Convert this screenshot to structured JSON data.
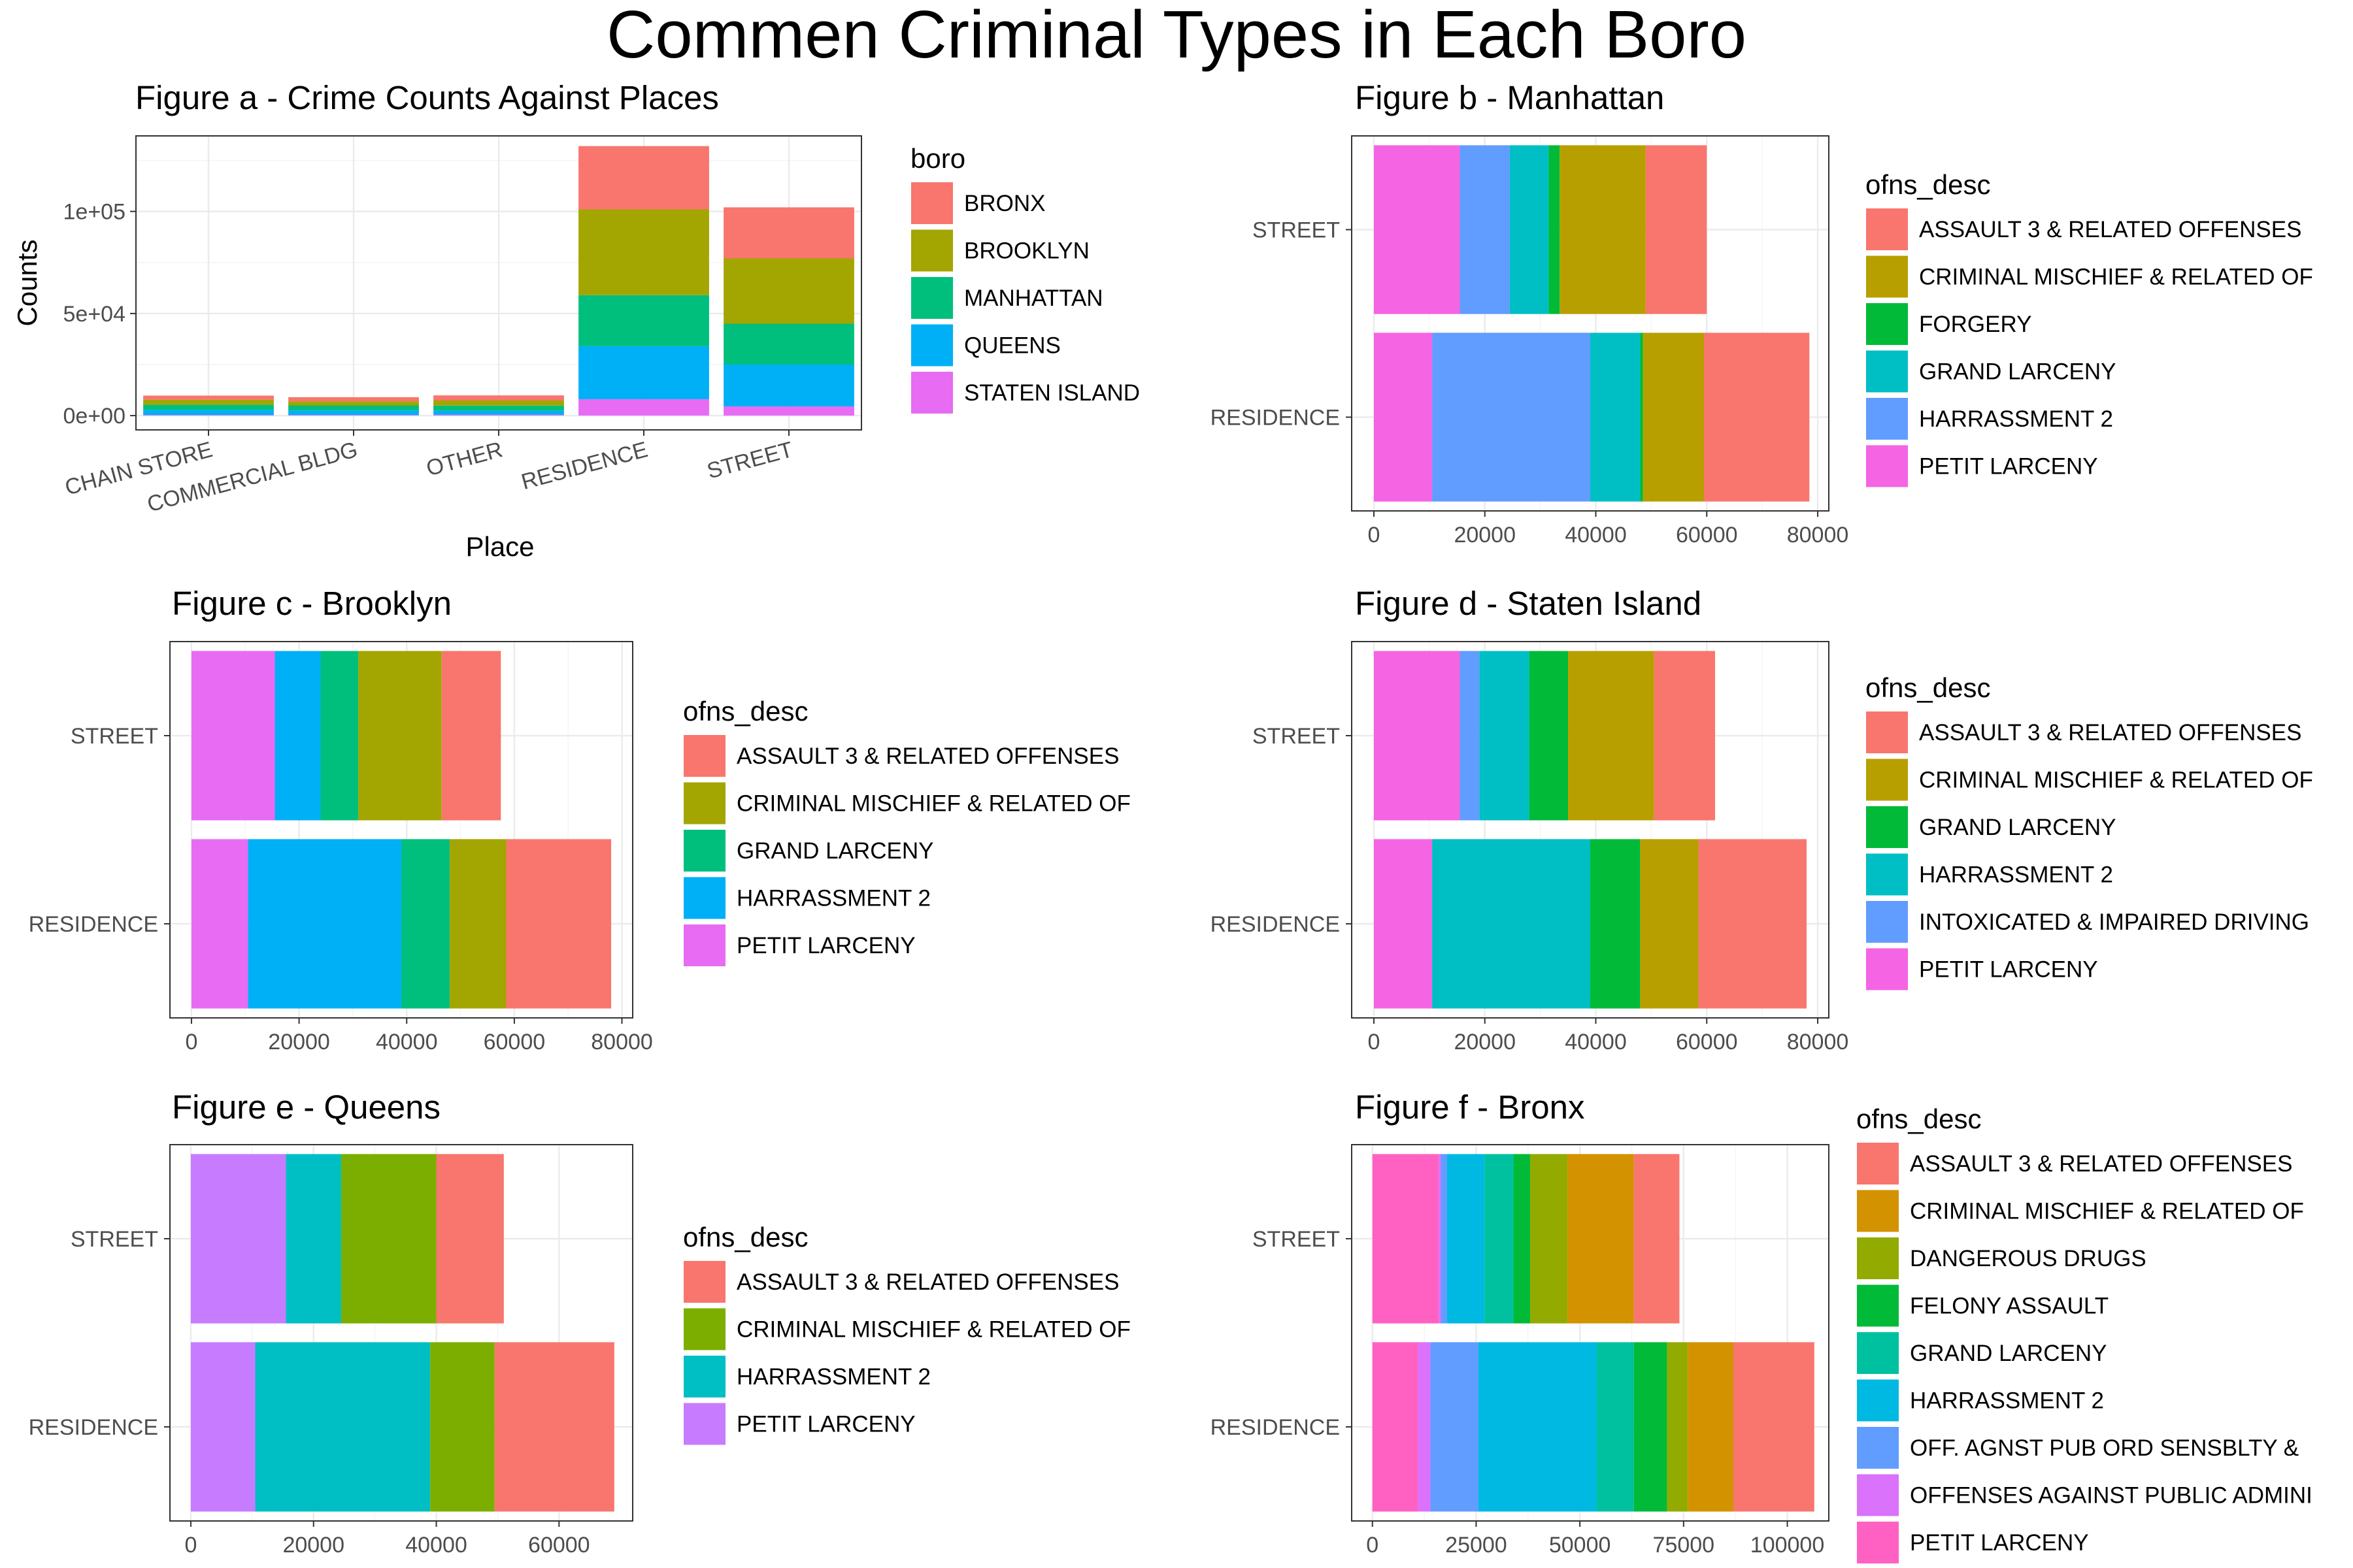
{
  "title": "Commen Criminal Types in Each Boro",
  "colors": {
    "BRONX": "#F8766D",
    "BROOKLYN": "#A3A500",
    "MANHATTAN": "#00BF7D",
    "QUEENS": "#00B0F6",
    "STATEN ISLAND": "#E76BF3"
  },
  "chart_data": [
    {
      "type": "bar",
      "title": "Figure a - Crime Counts Against Places",
      "xlabel": "Place",
      "ylabel": "Counts",
      "ylim": [
        -7000,
        137000
      ],
      "yticks": [
        0,
        50000,
        100000
      ],
      "ytick_labels": [
        "0e+00",
        "5e+04",
        "1e+05"
      ],
      "categories": [
        "CHAIN STORE",
        "COMMERCIAL BLDG",
        "OTHER",
        "RESIDENCE",
        "STREET"
      ],
      "legend_title": "boro",
      "legend_position": "right",
      "series": [
        {
          "name": "STATEN ISLAND",
          "color": "#E76BF3",
          "values": [
            300,
            300,
            400,
            8000,
            4500
          ]
        },
        {
          "name": "QUEENS",
          "color": "#00B0F6",
          "values": [
            2500,
            2200,
            2000,
            26000,
            20500
          ]
        },
        {
          "name": "MANHATTAN",
          "color": "#00BF7D",
          "values": [
            2500,
            2500,
            2500,
            25000,
            20000
          ]
        },
        {
          "name": "BROOKLYN",
          "color": "#A3A500",
          "values": [
            2500,
            2000,
            2500,
            42000,
            32000
          ]
        },
        {
          "name": "BRONX",
          "color": "#F8766D",
          "values": [
            2000,
            2000,
            2500,
            31000,
            25000
          ]
        }
      ]
    },
    {
      "type": "bar",
      "orientation": "horizontal",
      "title": "Figure b - Manhattan",
      "xlim": [
        -4000,
        82000
      ],
      "xticks": [
        0,
        20000,
        40000,
        60000,
        80000
      ],
      "categories": [
        "STREET",
        "RESIDENCE"
      ],
      "legend_title": "ofns_desc",
      "legend_position": "right",
      "series": [
        {
          "name": "PETIT LARCENY",
          "color": "#F564E3",
          "values": [
            15500,
            10500
          ]
        },
        {
          "name": "HARRASSMENT 2",
          "color": "#619CFF",
          "values": [
            9000,
            28500
          ]
        },
        {
          "name": "GRAND LARCENY",
          "color": "#00BFC4",
          "values": [
            7000,
            9000
          ]
        },
        {
          "name": "FORGERY",
          "color": "#00BA38",
          "values": [
            2000,
            500
          ]
        },
        {
          "name": "CRIMINAL MISCHIEF & RELATED OF",
          "color": "#B79F00",
          "values": [
            15500,
            11000
          ]
        },
        {
          "name": "ASSAULT 3 & RELATED OFFENSES",
          "color": "#F8766D",
          "values": [
            11000,
            19000
          ]
        }
      ]
    },
    {
      "type": "bar",
      "orientation": "horizontal",
      "title": "Figure c - Brooklyn",
      "xlim": [
        -4000,
        82000
      ],
      "xticks": [
        0,
        20000,
        40000,
        60000,
        80000
      ],
      "categories": [
        "STREET",
        "RESIDENCE"
      ],
      "legend_title": "ofns_desc",
      "legend_position": "right",
      "series": [
        {
          "name": "PETIT LARCENY",
          "color": "#E76BF3",
          "values": [
            15500,
            10500
          ]
        },
        {
          "name": "HARRASSMENT 2",
          "color": "#00B0F6",
          "values": [
            8500,
            28500
          ]
        },
        {
          "name": "GRAND LARCENY",
          "color": "#00BF7D",
          "values": [
            7000,
            9000
          ]
        },
        {
          "name": "CRIMINAL MISCHIEF & RELATED OF",
          "color": "#A3A500",
          "values": [
            15500,
            10500
          ]
        },
        {
          "name": "ASSAULT 3 & RELATED OFFENSES",
          "color": "#F8766D",
          "values": [
            11000,
            19500
          ]
        }
      ]
    },
    {
      "type": "bar",
      "orientation": "horizontal",
      "title": "Figure d - Staten Island",
      "xlim": [
        -4000,
        82000
      ],
      "xticks": [
        0,
        20000,
        40000,
        60000,
        80000
      ],
      "categories": [
        "STREET",
        "RESIDENCE"
      ],
      "legend_title": "ofns_desc",
      "legend_position": "right",
      "series": [
        {
          "name": "PETIT LARCENY",
          "color": "#F564E3",
          "values": [
            15500,
            10500
          ]
        },
        {
          "name": "INTOXICATED & IMPAIRED DRIVING",
          "color": "#619CFF",
          "values": [
            3500,
            0
          ]
        },
        {
          "name": "HARRASSMENT 2",
          "color": "#00BFC4",
          "values": [
            9000,
            28500
          ]
        },
        {
          "name": "GRAND LARCENY",
          "color": "#00BA38",
          "values": [
            7000,
            9000
          ]
        },
        {
          "name": "CRIMINAL MISCHIEF & RELATED OF",
          "color": "#B79F00",
          "values": [
            15500,
            10500
          ]
        },
        {
          "name": "ASSAULT 3 & RELATED OFFENSES",
          "color": "#F8766D",
          "values": [
            11000,
            19500
          ]
        }
      ]
    },
    {
      "type": "bar",
      "orientation": "horizontal",
      "title": "Figure e - Queens",
      "xlim": [
        -3400,
        72000
      ],
      "xticks": [
        0,
        20000,
        40000,
        60000
      ],
      "categories": [
        "STREET",
        "RESIDENCE"
      ],
      "legend_title": "ofns_desc",
      "legend_position": "right",
      "series": [
        {
          "name": "PETIT LARCENY",
          "color": "#C77CFF",
          "values": [
            15500,
            10500
          ]
        },
        {
          "name": "HARRASSMENT 2",
          "color": "#00BFC4",
          "values": [
            9000,
            28500
          ]
        },
        {
          "name": "CRIMINAL MISCHIEF & RELATED OF",
          "color": "#7CAE00",
          "values": [
            15500,
            10500
          ]
        },
        {
          "name": "ASSAULT 3 & RELATED OFFENSES",
          "color": "#F8766D",
          "values": [
            11000,
            19500
          ]
        }
      ]
    },
    {
      "type": "bar",
      "orientation": "horizontal",
      "title": "Figure f - Bronx",
      "xlim": [
        -5000,
        110000
      ],
      "xticks": [
        0,
        25000,
        50000,
        75000,
        100000
      ],
      "categories": [
        "STREET",
        "RESIDENCE"
      ],
      "legend_title": "ofns_desc",
      "legend_position": "right",
      "series": [
        {
          "name": "PETIT LARCENY",
          "color": "#FF61C3",
          "values": [
            16000,
            11000
          ]
        },
        {
          "name": "OFFENSES AGAINST PUBLIC ADMINI",
          "color": "#DB72FB",
          "values": [
            500,
            3000
          ]
        },
        {
          "name": "OFF. AGNST PUB ORD SENSBLTY &",
          "color": "#619CFF",
          "values": [
            1500,
            11500
          ]
        },
        {
          "name": "HARRASSMENT 2",
          "color": "#00B9E3",
          "values": [
            9000,
            28500
          ]
        },
        {
          "name": "GRAND LARCENY",
          "color": "#00C19F",
          "values": [
            7000,
            9000
          ]
        },
        {
          "name": "FELONY ASSAULT",
          "color": "#00BA38",
          "values": [
            4000,
            8000
          ]
        },
        {
          "name": "DANGEROUS DRUGS",
          "color": "#93AA00",
          "values": [
            9000,
            5000
          ]
        },
        {
          "name": "CRIMINAL MISCHIEF & RELATED OF",
          "color": "#D39200",
          "values": [
            16000,
            11000
          ]
        },
        {
          "name": "ASSAULT 3 & RELATED OFFENSES",
          "color": "#F8766D",
          "values": [
            11000,
            19500
          ]
        }
      ]
    }
  ]
}
